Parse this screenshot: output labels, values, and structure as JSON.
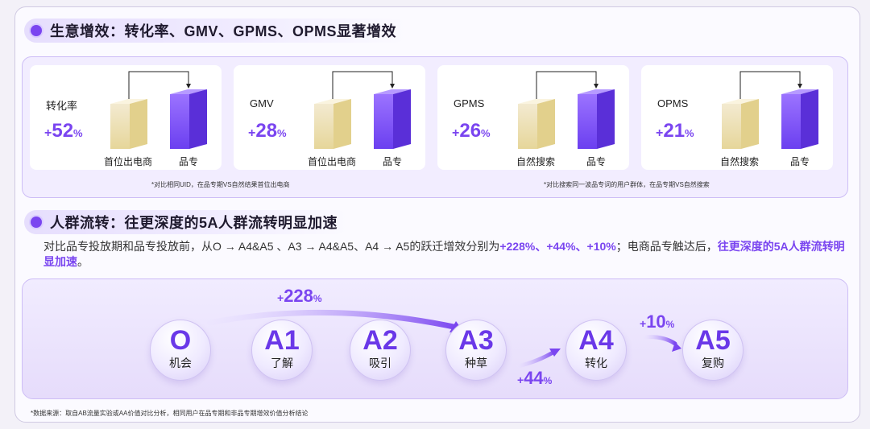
{
  "section1": {
    "title": "生意增效：转化率、GMV、GPMS、OPMS显著增效"
  },
  "cards": [
    {
      "metric": "转化率",
      "sign": "+",
      "value": "52",
      "unit": "%",
      "left_label": "首位出电商",
      "right_label": "品专"
    },
    {
      "metric": "GMV",
      "sign": "+",
      "value": "28",
      "unit": "%",
      "left_label": "首位出电商",
      "right_label": "品专"
    },
    {
      "metric": "GPMS",
      "sign": "+",
      "value": "26",
      "unit": "%",
      "left_label": "自然搜索",
      "right_label": "品专"
    },
    {
      "metric": "OPMS",
      "sign": "+",
      "value": "21",
      "unit": "%",
      "left_label": "自然搜索",
      "right_label": "品专"
    }
  ],
  "notes": {
    "left": "*对比相同UID，在品专期VS自然结果首位出电商",
    "right": "*对比搜索同一波品专词的用户群体，在品专期VS自然搜索"
  },
  "section2": {
    "title": "人群流转：往更深度的5A人群流转明显加速",
    "para_normal": "对比品专投放期和品专投放前，从O → A4&A5 、A3 → A4&A5、A4 → A5的跃迁增效分别为",
    "para_hl1": "+228%、+44%、+10%",
    "para_mid": "；电商品专触达后，",
    "para_hl2": "往更深度的5A人群流转明显加速",
    "para_end": "。"
  },
  "flow": {
    "nodes": [
      {
        "code": "O",
        "label": "机会"
      },
      {
        "code": "A1",
        "label": "了解"
      },
      {
        "code": "A2",
        "label": "吸引"
      },
      {
        "code": "A3",
        "label": "种草"
      },
      {
        "code": "A4",
        "label": "转化"
      },
      {
        "code": "A5",
        "label": "复购"
      }
    ],
    "gains": [
      {
        "sign": "+",
        "value": "228",
        "unit": "%"
      },
      {
        "sign": "+",
        "value": "44",
        "unit": "%"
      },
      {
        "sign": "+",
        "value": "10",
        "unit": "%"
      }
    ]
  },
  "source": "*数据来源：取自AB流量实验或AA价值对比分析，相同用户在品专期和非品专期增效价值分析结论",
  "colors": {
    "accent": "#7a45f0",
    "gold_bar": "#efe3b0",
    "purple_bar": "#7a45f0"
  }
}
